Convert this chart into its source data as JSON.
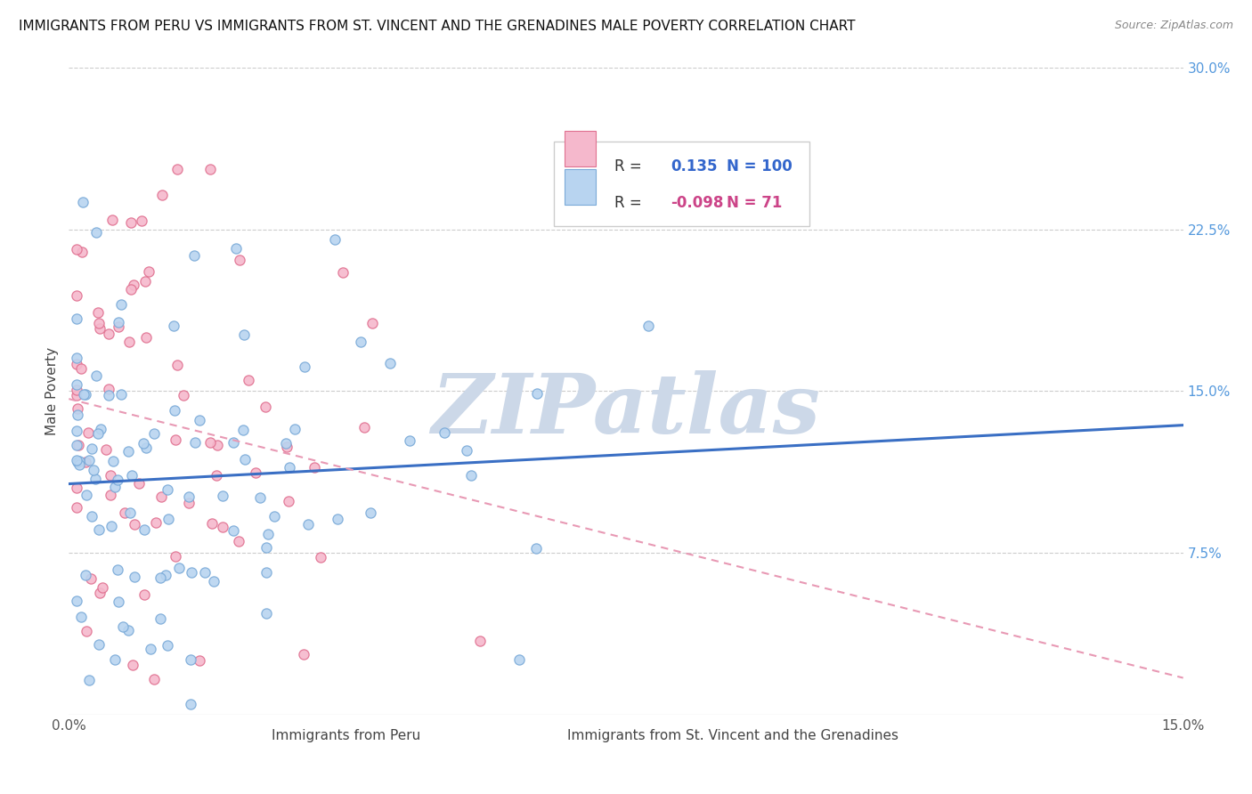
{
  "title": "IMMIGRANTS FROM PERU VS IMMIGRANTS FROM ST. VINCENT AND THE GRENADINES MALE POVERTY CORRELATION CHART",
  "source": "Source: ZipAtlas.com",
  "xlabel_peru": "Immigrants from Peru",
  "xlabel_svg": "Immigrants from St. Vincent and the Grenadines",
  "ylabel": "Male Poverty",
  "xlim": [
    0.0,
    0.15
  ],
  "ylim": [
    0.0,
    0.3
  ],
  "peru_R": 0.135,
  "peru_N": 100,
  "svg_R": -0.098,
  "svg_N": 71,
  "peru_color": "#b8d4f0",
  "peru_edge_color": "#7aaad8",
  "svg_color": "#f5b8cc",
  "svg_edge_color": "#e07090",
  "trend_peru_color": "#3a6fc4",
  "trend_svg_color": "#e899b4",
  "watermark": "ZIPatlas",
  "watermark_color": "#ccd8e8",
  "title_fontsize": 11,
  "marker_size": 65,
  "seed": 42
}
